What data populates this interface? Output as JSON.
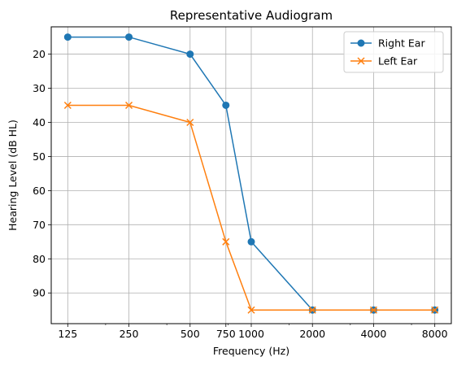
{
  "chart_data": {
    "type": "line",
    "title": "Representative Audiogram",
    "xlabel": "Frequency (Hz)",
    "ylabel": "Hearing Level (dB HL)",
    "x_scale": "log2",
    "y_inverted": true,
    "x": [
      125,
      250,
      500,
      750,
      1000,
      2000,
      4000,
      8000
    ],
    "xticks": [
      125,
      250,
      500,
      750,
      1000,
      2000,
      4000,
      8000
    ],
    "xtick_labels": [
      "125",
      "250",
      "500",
      "750",
      "1000",
      "2000",
      "4000",
      "8000"
    ],
    "yticks": [
      20,
      30,
      40,
      50,
      60,
      70,
      80,
      90
    ],
    "ytick_labels": [
      "20",
      "30",
      "40",
      "50",
      "60",
      "70",
      "80",
      "90"
    ],
    "ylim": [
      12,
      99
    ],
    "grid": true,
    "legend_position": "top-right",
    "series": [
      {
        "name": "Right Ear",
        "marker": "circle",
        "color": "#1f77b4",
        "values": [
          15,
          15,
          20,
          35,
          75,
          95,
          95,
          95
        ]
      },
      {
        "name": "Left Ear",
        "marker": "x",
        "color": "#ff7f0e",
        "values": [
          35,
          35,
          40,
          75,
          95,
          95,
          95,
          95
        ]
      }
    ]
  }
}
